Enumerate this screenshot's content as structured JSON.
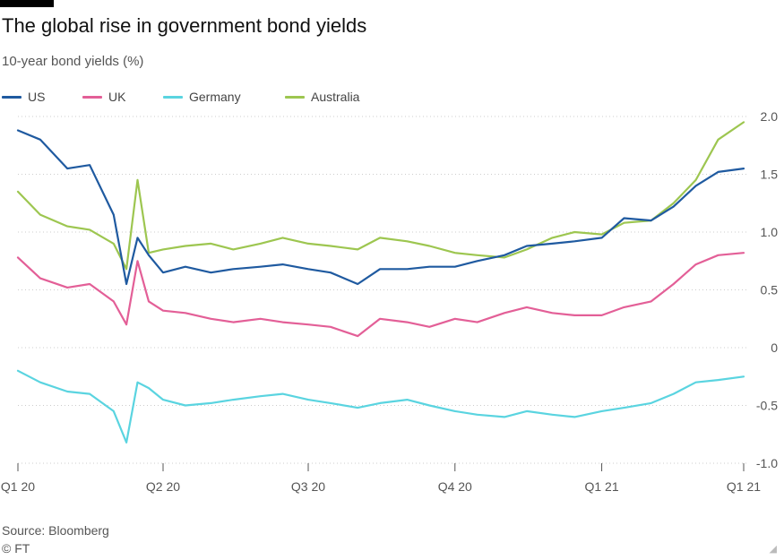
{
  "title": "The global rise in government bond yields",
  "subtitle": "10-year bond yields (%)",
  "source": "Source: Bloomberg",
  "credit": "© FT",
  "chart_data": {
    "type": "line",
    "title": "The global rise in government bond yields",
    "ylabel": "10-year bond yields (%)",
    "xlabel": "",
    "ylim": [
      -1.0,
      2.0
    ],
    "yticks": [
      2.0,
      1.5,
      1.0,
      0.5,
      0,
      -0.5,
      -1.0
    ],
    "ytick_labels": [
      "2.0",
      "1.5",
      "1.0",
      "0.5",
      "0",
      "-0.5",
      "-1.0"
    ],
    "xlim": [
      "2020-01-01",
      "2021-03-31"
    ],
    "xticks": [
      "2020-01-01",
      "2020-04-01",
      "2020-07-01",
      "2020-10-01",
      "2021-01-01",
      "2021-03-31"
    ],
    "xtick_labels": [
      "Q1 20",
      "Q2 20",
      "Q3 20",
      "Q4 20",
      "Q1 21",
      "Q1 21"
    ],
    "grid": true,
    "legend_position": "top-left",
    "x": [
      "2020-01-01",
      "2020-01-15",
      "2020-02-01",
      "2020-02-15",
      "2020-03-01",
      "2020-03-09",
      "2020-03-16",
      "2020-03-23",
      "2020-04-01",
      "2020-04-15",
      "2020-05-01",
      "2020-05-15",
      "2020-06-01",
      "2020-06-15",
      "2020-07-01",
      "2020-07-15",
      "2020-08-01",
      "2020-08-15",
      "2020-09-01",
      "2020-09-15",
      "2020-10-01",
      "2020-10-15",
      "2020-11-01",
      "2020-11-15",
      "2020-12-01",
      "2020-12-15",
      "2021-01-01",
      "2021-01-15",
      "2021-02-01",
      "2021-02-15",
      "2021-03-01",
      "2021-03-15",
      "2021-03-31"
    ],
    "series": [
      {
        "name": "US",
        "color": "#1f5aa0",
        "values": [
          1.88,
          1.8,
          1.55,
          1.58,
          1.15,
          0.55,
          0.95,
          0.8,
          0.65,
          0.7,
          0.65,
          0.68,
          0.7,
          0.72,
          0.68,
          0.65,
          0.55,
          0.68,
          0.68,
          0.7,
          0.7,
          0.75,
          0.8,
          0.88,
          0.9,
          0.92,
          0.95,
          1.12,
          1.1,
          1.22,
          1.4,
          1.52,
          1.55
        ]
      },
      {
        "name": "UK",
        "color": "#e35f97",
        "values": [
          0.78,
          0.6,
          0.52,
          0.55,
          0.4,
          0.2,
          0.75,
          0.4,
          0.32,
          0.3,
          0.25,
          0.22,
          0.25,
          0.22,
          0.2,
          0.18,
          0.1,
          0.25,
          0.22,
          0.18,
          0.25,
          0.22,
          0.3,
          0.35,
          0.3,
          0.28,
          0.28,
          0.35,
          0.4,
          0.55,
          0.72,
          0.8,
          0.82
        ]
      },
      {
        "name": "Germany",
        "color": "#5ad4e0",
        "values": [
          -0.2,
          -0.3,
          -0.38,
          -0.4,
          -0.55,
          -0.82,
          -0.3,
          -0.35,
          -0.45,
          -0.5,
          -0.48,
          -0.45,
          -0.42,
          -0.4,
          -0.45,
          -0.48,
          -0.52,
          -0.48,
          -0.45,
          -0.5,
          -0.55,
          -0.58,
          -0.6,
          -0.55,
          -0.58,
          -0.6,
          -0.55,
          -0.52,
          -0.48,
          -0.4,
          -0.3,
          -0.28,
          -0.25
        ]
      },
      {
        "name": "Australia",
        "color": "#9dc650",
        "values": [
          1.35,
          1.15,
          1.05,
          1.02,
          0.9,
          0.68,
          1.45,
          0.82,
          0.85,
          0.88,
          0.9,
          0.85,
          0.9,
          0.95,
          0.9,
          0.88,
          0.85,
          0.95,
          0.92,
          0.88,
          0.82,
          0.8,
          0.78,
          0.85,
          0.95,
          1.0,
          0.98,
          1.08,
          1.1,
          1.25,
          1.45,
          1.8,
          1.95
        ]
      }
    ]
  }
}
